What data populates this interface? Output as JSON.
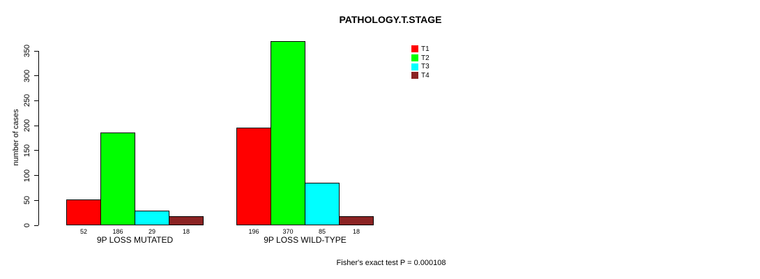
{
  "chart_data": {
    "type": "bar",
    "title": "PATHOLOGY.T.STAGE",
    "xlabel": "",
    "ylabel": "number of cases",
    "ylim": [
      0,
      350
    ],
    "yticks": [
      0,
      50,
      100,
      150,
      200,
      250,
      300,
      350
    ],
    "grid": false,
    "legend_position": "top-right",
    "series": [
      {
        "name": "T1",
        "color": "#FF0000"
      },
      {
        "name": "T2",
        "color": "#00FF00"
      },
      {
        "name": "T3",
        "color": "#00FFFF"
      },
      {
        "name": "T4",
        "color": "#8B2323"
      }
    ],
    "groups": [
      {
        "label": "9P LOSS MUTATED",
        "values": [
          52,
          186,
          29,
          18
        ]
      },
      {
        "label": "9P LOSS WILD-TYPE",
        "values": [
          196,
          370,
          85,
          18
        ]
      }
    ],
    "annotation": "Fisher's exact test P = 0.000108",
    "axis_color": "#000000"
  }
}
